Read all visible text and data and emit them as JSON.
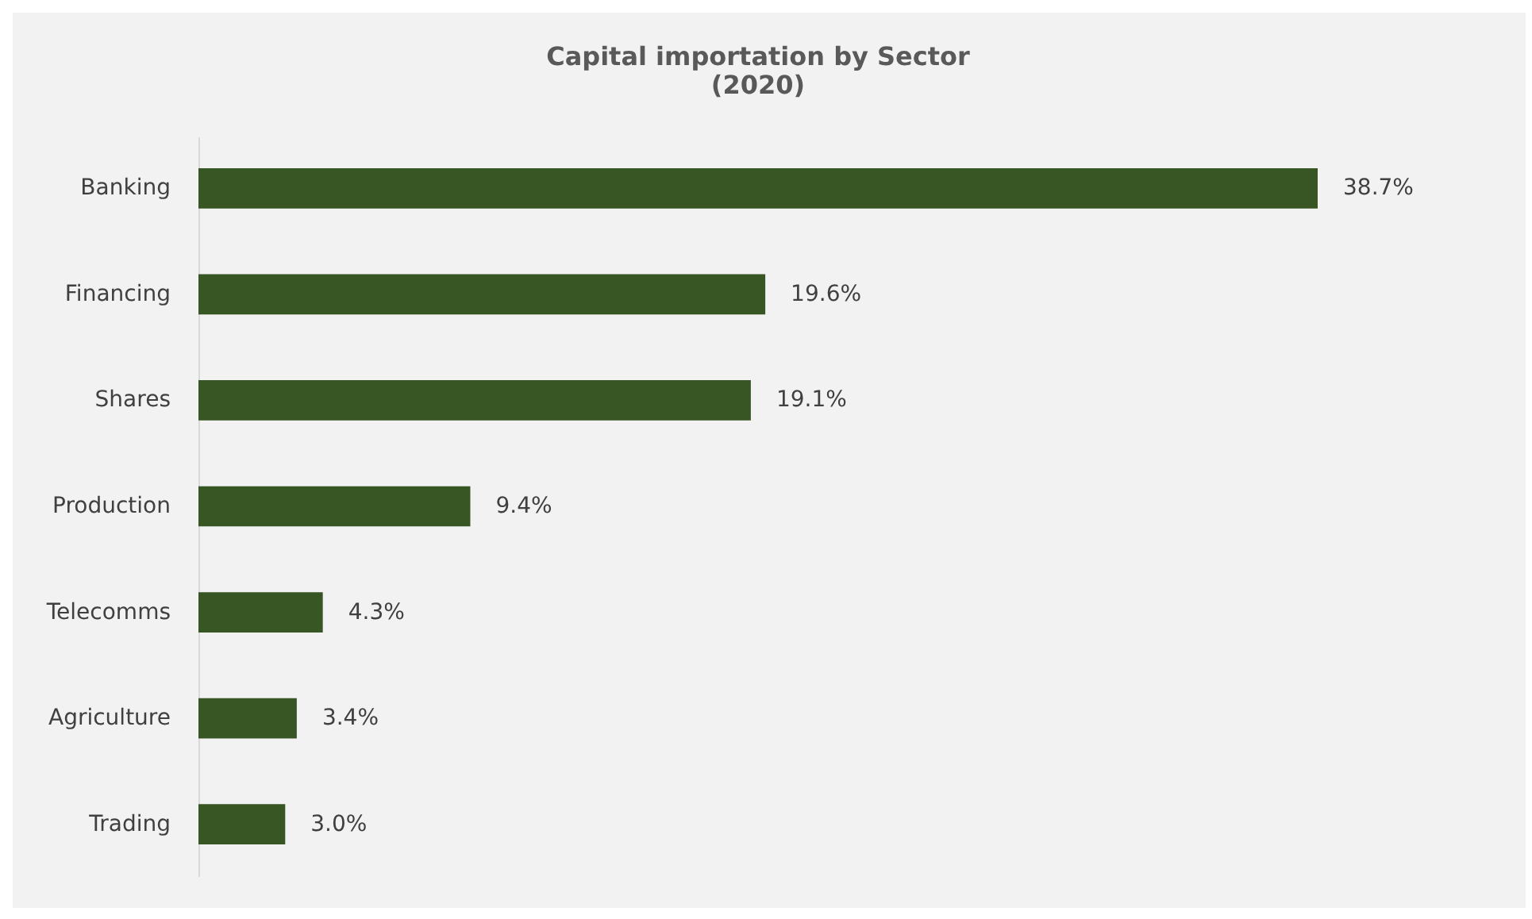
{
  "chart_data": {
    "type": "bar",
    "orientation": "horizontal",
    "title": "Capital importation by Sector",
    "subtitle": "(2020)",
    "categories": [
      "Banking",
      "Financing",
      "Shares",
      "Production",
      "Telecomms",
      "Agriculture",
      "Trading"
    ],
    "values": [
      38.7,
      19.6,
      19.1,
      9.4,
      4.3,
      3.4,
      3.0
    ],
    "value_labels": [
      "38.7%",
      "19.6%",
      "19.1%",
      "9.4%",
      "4.3%",
      "3.4%",
      "3.0%"
    ],
    "color": "#375623",
    "tick_labels": "y"
  }
}
